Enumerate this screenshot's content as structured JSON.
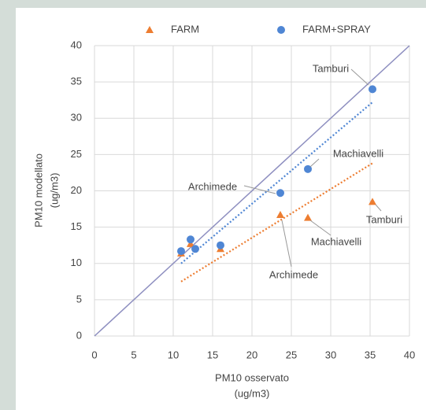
{
  "chart_data": {
    "type": "scatter",
    "x_label": [
      "PM10 osservato",
      "(ug/m3)"
    ],
    "y_label": [
      "PM10 modellato",
      "(ug/m3)"
    ],
    "series": [
      {
        "name": "FARM",
        "color": "#ed7d31",
        "marker": "triangle",
        "x": [
          11,
          12.2,
          16,
          23.6,
          27.1,
          35.3
        ],
        "y": [
          11.4,
          12.7,
          12.0,
          16.7,
          16.3,
          18.5
        ]
      },
      {
        "name": "FARM+SPRAY",
        "color": "#4f86d4",
        "marker": "circle",
        "x": [
          11,
          12.2,
          12.8,
          16,
          23.6,
          27.1,
          35.3
        ],
        "y": [
          11.7,
          13.3,
          12.0,
          12.5,
          19.7,
          23.0,
          34.0
        ]
      }
    ],
    "trendlines": [
      {
        "color": "#ed7d31",
        "x": [
          11,
          35.3
        ],
        "y": [
          7.5,
          23.8
        ]
      },
      {
        "color": "#4f86d4",
        "x": [
          11,
          35.3
        ],
        "y": [
          10.0,
          32.2
        ]
      }
    ],
    "reference_line": {
      "color": "#8e8fc0",
      "x": [
        0,
        40
      ],
      "y": [
        0,
        40
      ]
    },
    "annotations": [
      "Tamburi",
      "Machiavelli",
      "Archimede",
      "Tamburi",
      "Machiavelli",
      "Archimede"
    ],
    "xlim": [
      0,
      40
    ],
    "xticks": [
      0,
      5,
      10,
      15,
      20,
      25,
      30,
      35,
      40
    ],
    "ylim": [
      0,
      40
    ],
    "yticks": [
      0,
      5,
      10,
      15,
      20,
      25,
      30,
      35,
      40
    ],
    "grid": true,
    "legend": "top"
  }
}
